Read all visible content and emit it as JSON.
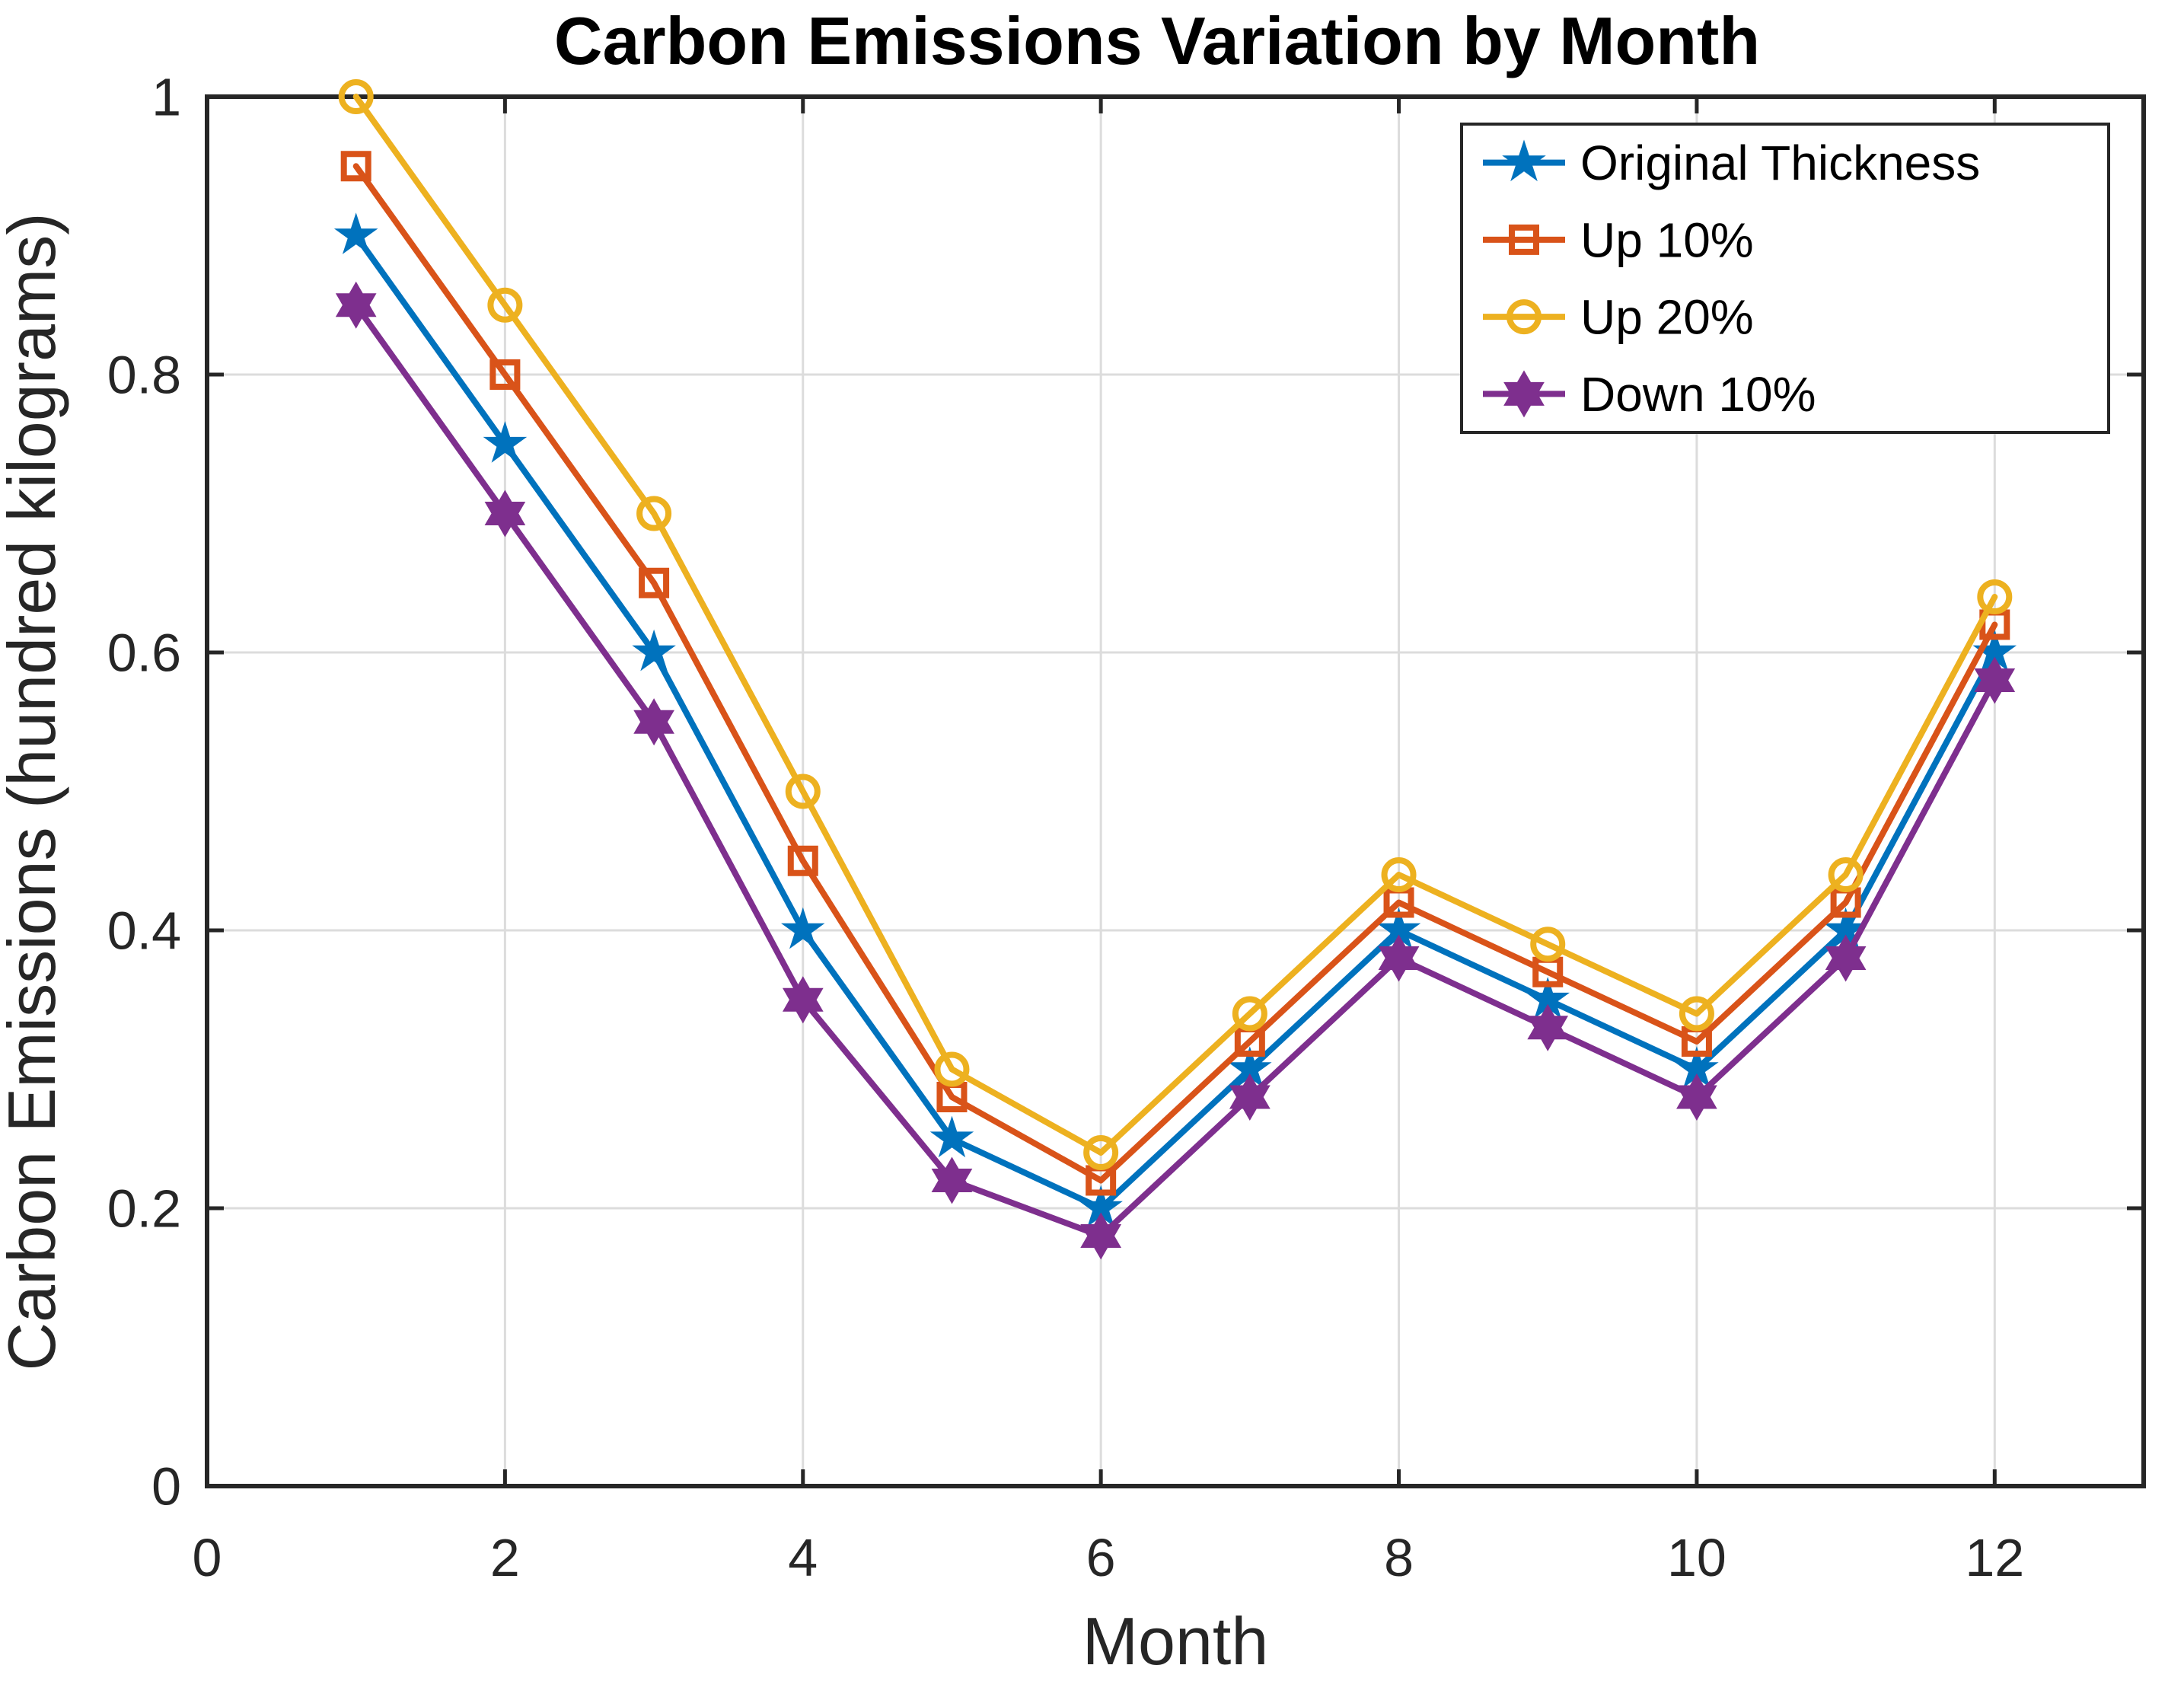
{
  "title": "Carbon Emissions Variation by Month",
  "chart_data": {
    "type": "line",
    "title": "Carbon Emissions Variation by Month",
    "xlabel": "Month",
    "ylabel": "Carbon Emissions (hundred kilograms)",
    "x": [
      1,
      2,
      3,
      4,
      5,
      6,
      7,
      8,
      9,
      10,
      11,
      12
    ],
    "series": [
      {
        "name": "Original Thickness",
        "color": "#0072BD",
        "marker": "pentagram",
        "values": [
          0.9,
          0.75,
          0.6,
          0.4,
          0.25,
          0.2,
          0.3,
          0.4,
          0.35,
          0.3,
          0.4,
          0.6
        ]
      },
      {
        "name": "Up 10%",
        "color": "#D95319",
        "marker": "square",
        "values": [
          0.95,
          0.8,
          0.65,
          0.45,
          0.28,
          0.22,
          0.32,
          0.42,
          0.37,
          0.32,
          0.42,
          0.62
        ]
      },
      {
        "name": "Up 20%",
        "color": "#EDB120",
        "marker": "circle",
        "values": [
          1.0,
          0.85,
          0.7,
          0.5,
          0.3,
          0.24,
          0.34,
          0.44,
          0.39,
          0.34,
          0.44,
          0.64
        ]
      },
      {
        "name": "Down 10%",
        "color": "#7E2F8E",
        "marker": "hexagram",
        "values": [
          0.85,
          0.7,
          0.55,
          0.35,
          0.22,
          0.18,
          0.28,
          0.38,
          0.33,
          0.28,
          0.38,
          0.58
        ]
      }
    ],
    "xlim": [
      0,
      13
    ],
    "ylim": [
      0,
      1
    ],
    "x_ticks": [
      0,
      2,
      4,
      6,
      8,
      10,
      12
    ],
    "y_ticks": [
      0,
      0.2,
      0.4,
      0.6,
      0.8,
      1
    ],
    "grid": true,
    "legend_position": "top-right",
    "axis_color": "#262626",
    "grid_color": "#DCDCDC",
    "background": "#FFFFFF"
  }
}
